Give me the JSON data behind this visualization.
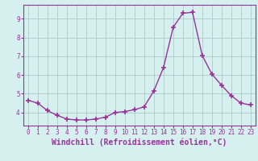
{
  "x": [
    0,
    1,
    2,
    3,
    4,
    5,
    6,
    7,
    8,
    9,
    10,
    11,
    12,
    13,
    14,
    15,
    16,
    17,
    18,
    19,
    20,
    21,
    22,
    23
  ],
  "y": [
    4.65,
    4.5,
    4.1,
    3.85,
    3.65,
    3.6,
    3.6,
    3.65,
    3.75,
    4.0,
    4.05,
    4.15,
    4.3,
    5.15,
    6.4,
    8.55,
    9.3,
    9.35,
    7.05,
    6.05,
    5.45,
    4.9,
    4.5,
    4.4
  ],
  "line_color": "#993399",
  "marker": "+",
  "marker_size": 4,
  "linewidth": 1.0,
  "ylim": [
    3.3,
    9.75
  ],
  "yticks": [
    4,
    5,
    6,
    7,
    8,
    9
  ],
  "xlim": [
    -0.5,
    23.5
  ],
  "xticks": [
    0,
    1,
    2,
    3,
    4,
    5,
    6,
    7,
    8,
    9,
    10,
    11,
    12,
    13,
    14,
    15,
    16,
    17,
    18,
    19,
    20,
    21,
    22,
    23
  ],
  "xlabel": "Windchill (Refroidissement éolien,°C)",
  "background_color": "#d6f0f0",
  "grid_color": "#aacccc",
  "tick_fontsize": 5.5,
  "xlabel_fontsize": 7,
  "font_family": "monospace"
}
